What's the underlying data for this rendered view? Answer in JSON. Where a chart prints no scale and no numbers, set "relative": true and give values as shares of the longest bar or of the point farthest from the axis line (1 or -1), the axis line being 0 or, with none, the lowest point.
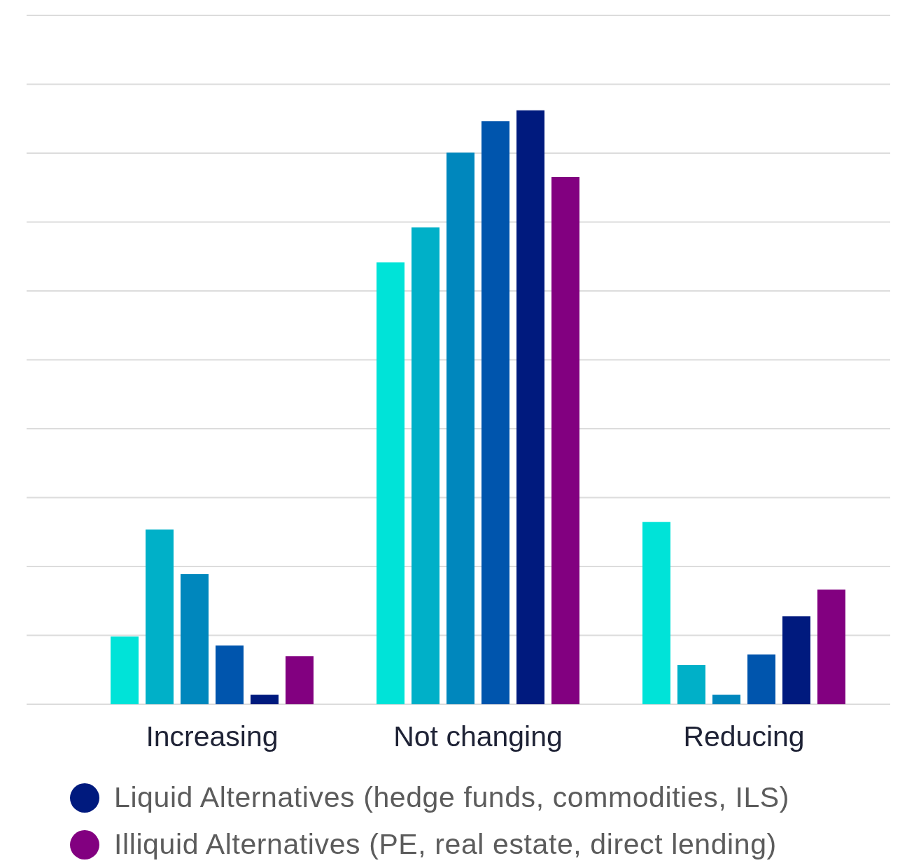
{
  "chart_data": {
    "type": "bar",
    "relative": true,
    "categories": [
      "Increasing",
      "Not changing",
      "Reducing"
    ],
    "series": [
      {
        "color": "#00e3d8",
        "values": [
          0.114,
          0.744,
          0.307
        ]
      },
      {
        "color": "#00b0c8",
        "values": [
          0.294,
          0.803,
          0.066
        ]
      },
      {
        "color": "#0087bd",
        "values": [
          0.219,
          0.929,
          0.016
        ]
      },
      {
        "color": "#0055ad",
        "values": [
          0.099,
          0.982,
          0.084
        ]
      },
      {
        "name": "Liquid Alternatives (hedge funds, commodities, ILS)",
        "color": "#001a7e",
        "values": [
          0.016,
          1,
          0.148
        ]
      },
      {
        "name": "Illiquid Alternatives (PE, real estate, direct lending)",
        "color": "#820080",
        "values": [
          0.081,
          0.888,
          0.193
        ]
      }
    ],
    "grid": "y",
    "legend": "bottom"
  }
}
